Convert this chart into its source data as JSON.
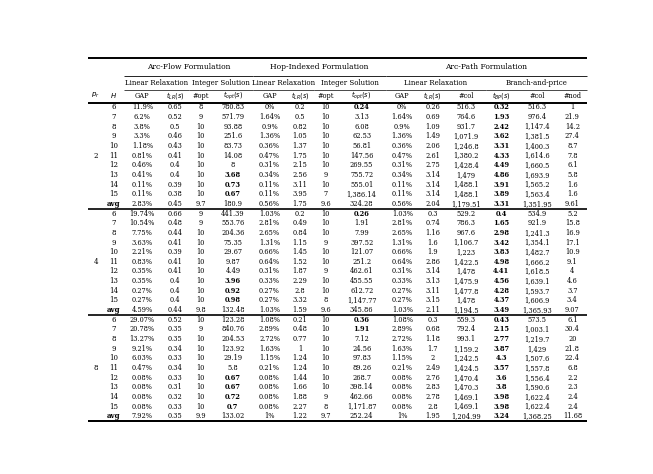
{
  "rows": [
    [
      "2",
      "6",
      "11.9%",
      "0.65",
      "8",
      "780.83",
      "0%",
      "0.2",
      "10",
      "0.24",
      "0%",
      "0.26",
      "516.3",
      "0.32",
      "516.3",
      "1"
    ],
    [
      "",
      "7",
      "6.2%",
      "0.52",
      "9",
      "571.79",
      "1.64%",
      "0.5",
      "10",
      "3.13",
      "1.64%",
      "0.69",
      "764.6",
      "1.93",
      "976.4",
      "21.9"
    ],
    [
      "",
      "8",
      "3.8%",
      "0.5",
      "10",
      "93.88",
      "0.9%",
      "0.82",
      "10",
      "6.08",
      "0.9%",
      "1.09",
      "931.7",
      "2.42",
      "1,147.4",
      "14.2"
    ],
    [
      "",
      "9",
      "3.3%",
      "0.46",
      "10",
      "251.6",
      "1.36%",
      "1.05",
      "10",
      "62.53",
      "1.36%",
      "1.49",
      "1,071.9",
      "3.62",
      "1,381.5",
      "27.4"
    ],
    [
      "",
      "10",
      "1.18%",
      "0.43",
      "10",
      "83.73",
      "0.36%",
      "1.37",
      "10",
      "56.81",
      "0.36%",
      "2.06",
      "1,246.8",
      "3.31",
      "1,400.3",
      "8.7"
    ],
    [
      "",
      "11",
      "0.81%",
      "0.41",
      "10",
      "14.08",
      "0.47%",
      "1.75",
      "10",
      "147.56",
      "0.47%",
      "2.61",
      "1,380.2",
      "4.33",
      "1,614.6",
      "7.8"
    ],
    [
      "",
      "12",
      "0.46%",
      "0.4",
      "10",
      "8",
      "0.31%",
      "2.15",
      "10",
      "269.55",
      "0.31%",
      "2.75",
      "1,428.4",
      "4.49",
      "1,660.5",
      "6.1"
    ],
    [
      "",
      "13",
      "0.41%",
      "0.4",
      "10",
      "3.68",
      "0.34%",
      "2.56",
      "9",
      "755.72",
      "0.34%",
      "3.14",
      "1,479",
      "4.86",
      "1,693.9",
      "5.8"
    ],
    [
      "",
      "14",
      "0.11%",
      "0.39",
      "10",
      "0.73",
      "0.11%",
      "3.11",
      "10",
      "555.01",
      "0.11%",
      "3.14",
      "1,488.1",
      "3.91",
      "1,565.2",
      "1.6"
    ],
    [
      "",
      "15",
      "0.11%",
      "0.38",
      "10",
      "0.67",
      "0.11%",
      "3.95",
      "7",
      "1,386.14",
      "0.11%",
      "3.14",
      "1,488.1",
      "3.89",
      "1,563.4",
      "1.6"
    ],
    [
      "",
      "avg",
      "2.83%",
      "0.45",
      "9.7",
      "180.9",
      "0.56%",
      "1.75",
      "9.6",
      "324.28",
      "0.56%",
      "2.04",
      "1,179.51",
      "3.31",
      "1,351.95",
      "9.61"
    ],
    [
      "4",
      "6",
      "19.74%",
      "0.66",
      "9",
      "441.39",
      "1.03%",
      "0.2",
      "10",
      "0.26",
      "1.03%",
      "0.3",
      "529.2",
      "0.4",
      "534.9",
      "5.2"
    ],
    [
      "",
      "7",
      "10.54%",
      "0.48",
      "9",
      "553.76",
      "2.81%",
      "0.49",
      "10",
      "1.91",
      "2.81%",
      "0.74",
      "786.3",
      "1.65",
      "921.9",
      "15.8"
    ],
    [
      "",
      "8",
      "7.75%",
      "0.44",
      "10",
      "204.36",
      "2.65%",
      "0.84",
      "10",
      "7.99",
      "2.65%",
      "1.16",
      "967.6",
      "2.98",
      "1,241.3",
      "16.9"
    ],
    [
      "",
      "9",
      "3.63%",
      "0.41",
      "10",
      "75.35",
      "1.31%",
      "1.15",
      "9",
      "397.52",
      "1.31%",
      "1.6",
      "1,106.7",
      "3.42",
      "1,354.1",
      "17.1"
    ],
    [
      "",
      "10",
      "2.21%",
      "0.39",
      "10",
      "29.67",
      "0.66%",
      "1.45",
      "10",
      "121.07",
      "0.66%",
      "1.9",
      "1,223",
      "3.83",
      "1,482.7",
      "10.9"
    ],
    [
      "",
      "11",
      "0.83%",
      "0.41",
      "10",
      "9.87",
      "0.64%",
      "1.52",
      "10",
      "251.2",
      "0.64%",
      "2.86",
      "1,422.5",
      "4.98",
      "1,666.2",
      "9.1"
    ],
    [
      "",
      "12",
      "0.35%",
      "0.41",
      "10",
      "4.49",
      "0.31%",
      "1.87",
      "9",
      "462.61",
      "0.31%",
      "3.14",
      "1,478",
      "4.41",
      "1,618.5",
      "4"
    ],
    [
      "",
      "13",
      "0.35%",
      "0.4",
      "10",
      "3.96",
      "0.33%",
      "2.29",
      "10",
      "455.55",
      "0.33%",
      "3.13",
      "1,475.9",
      "4.56",
      "1,639.1",
      "4.6"
    ],
    [
      "",
      "14",
      "0.27%",
      "0.4",
      "10",
      "0.92",
      "0.27%",
      "2.8",
      "10",
      "612.72",
      "0.27%",
      "3.11",
      "1,477.8",
      "4.28",
      "1,593.7",
      "3.7"
    ],
    [
      "",
      "15",
      "0.27%",
      "0.4",
      "10",
      "0.98",
      "0.27%",
      "3.32",
      "8",
      "1,147.77",
      "0.27%",
      "3.15",
      "1,478",
      "4.37",
      "1,606.9",
      "3.4"
    ],
    [
      "",
      "avg",
      "4.59%",
      "0.44",
      "9.8",
      "132.48",
      "1.03%",
      "1.59",
      "9.6",
      "345.86",
      "1.03%",
      "2.11",
      "1,194.5",
      "3.49",
      "1,365.93",
      "9.07"
    ],
    [
      "8",
      "6",
      "29.07%",
      "0.52",
      "10",
      "123.28",
      "1.08%",
      "0.21",
      "10",
      "0.36",
      "1.08%",
      "0.3",
      "559.3",
      "0.43",
      "573.5",
      "6.1"
    ],
    [
      "",
      "7",
      "20.78%",
      "0.35",
      "9",
      "840.76",
      "2.89%",
      "0.48",
      "10",
      "1.91",
      "2.89%",
      "0.68",
      "792.4",
      "2.15",
      "1,003.1",
      "30.4"
    ],
    [
      "",
      "8",
      "13.27%",
      "0.35",
      "10",
      "204.53",
      "2.72%",
      "0.77",
      "10",
      "7.12",
      "2.72%",
      "1.18",
      "993.1",
      "2.77",
      "1,219.7",
      "20"
    ],
    [
      "",
      "9",
      "9.21%",
      "0.34",
      "10",
      "123.92",
      "1.63%",
      "1",
      "10",
      "24.56",
      "1.63%",
      "1.7",
      "1,159.2",
      "3.87",
      "1,429",
      "21.8"
    ],
    [
      "",
      "10",
      "6.03%",
      "0.33",
      "10",
      "29.19",
      "1.15%",
      "1.24",
      "10",
      "97.83",
      "1.15%",
      "2",
      "1,242.5",
      "4.3",
      "1,507.6",
      "22.4"
    ],
    [
      "",
      "11",
      "0.47%",
      "0.34",
      "10",
      "5.8",
      "0.21%",
      "1.24",
      "10",
      "89.26",
      "0.21%",
      "2.49",
      "1,424.5",
      "3.57",
      "1,557.8",
      "6.8"
    ],
    [
      "",
      "12",
      "0.08%",
      "0.33",
      "10",
      "0.67",
      "0.08%",
      "1.44",
      "10",
      "268.7",
      "0.08%",
      "2.76",
      "1,470.4",
      "3.6",
      "1,556.4",
      "2.2"
    ],
    [
      "",
      "13",
      "0.08%",
      "0.31",
      "10",
      "0.67",
      "0.08%",
      "1.66",
      "10",
      "398.14",
      "0.08%",
      "2.83",
      "1,470.3",
      "3.8",
      "1,590.6",
      "2.3"
    ],
    [
      "",
      "14",
      "0.08%",
      "0.32",
      "10",
      "0.72",
      "0.08%",
      "1.88",
      "9",
      "462.66",
      "0.08%",
      "2.78",
      "1,469.1",
      "3.98",
      "1,622.4",
      "2.4"
    ],
    [
      "",
      "15",
      "0.08%",
      "0.33",
      "10",
      "0.7",
      "0.08%",
      "2.27",
      "8",
      "1,171.87",
      "0.08%",
      "2.8",
      "1,469.1",
      "3.98",
      "1,622.4",
      "2.4"
    ],
    [
      "",
      "avg",
      "7.92%",
      "0.35",
      "9.9",
      "133.02",
      "1%",
      "1.22",
      "9.7",
      "252.24",
      "1%",
      "1.95",
      "1,204.99",
      "3.24",
      "1,368.25",
      "11.68"
    ]
  ],
  "bold": {
    "0": [
      9,
      13
    ],
    "1": [
      13
    ],
    "2": [
      13
    ],
    "3": [
      13
    ],
    "4": [
      13
    ],
    "5": [
      13
    ],
    "6": [
      13
    ],
    "7": [
      5,
      13
    ],
    "8": [
      5,
      13
    ],
    "9": [
      5,
      13
    ],
    "10": [
      13
    ],
    "11": [
      9,
      13
    ],
    "12": [
      13
    ],
    "13": [
      13
    ],
    "14": [
      13
    ],
    "15": [
      13
    ],
    "16": [
      13
    ],
    "17": [
      13
    ],
    "18": [
      5,
      13
    ],
    "19": [
      5,
      13
    ],
    "20": [
      5,
      13
    ],
    "21": [
      13
    ],
    "22": [
      9,
      13
    ],
    "23": [
      9,
      13
    ],
    "24": [
      13
    ],
    "25": [
      13
    ],
    "26": [
      13
    ],
    "27": [
      13
    ],
    "28": [
      5,
      13
    ],
    "29": [
      5,
      13
    ],
    "30": [
      5,
      13
    ],
    "31": [
      5,
      13
    ],
    "32": [
      13
    ]
  },
  "avg_rows": [
    10,
    21,
    32
  ],
  "pr_groups": {
    "2": [
      0,
      10
    ],
    "4": [
      11,
      21
    ],
    "8": [
      22,
      32
    ]
  },
  "col_widths_raw": [
    1.0,
    1.3,
    2.4,
    1.8,
    1.5,
    2.6,
    2.1,
    1.8,
    1.5,
    3.1,
    2.1,
    1.8,
    2.5,
    2.0,
    2.6,
    1.9
  ],
  "h1_labels": [
    "Arc-Flow Formulation",
    "Hop-Indexed Formulation",
    "Arc-Path Formulation"
  ],
  "h2_labels": [
    "Linear Relaxation",
    "Integer Solution",
    "Linear Relaxation",
    "Integer Solution",
    "Linear Relaxation",
    "Branch-and-price"
  ],
  "h3_labels": [
    "GAP",
    "t_LR(s)",
    "#opt",
    "t_opt(s)",
    "GAP",
    "t_LR(s)",
    "#opt",
    "t_opt(s)",
    "GAP",
    "t_LR(s)",
    "#col",
    "t_BP(s)",
    "#col",
    "#nod"
  ],
  "col_h3_italic": [
    true,
    false,
    true,
    false,
    true,
    false,
    true,
    false,
    true,
    false,
    true,
    false,
    true,
    false,
    true,
    false
  ]
}
